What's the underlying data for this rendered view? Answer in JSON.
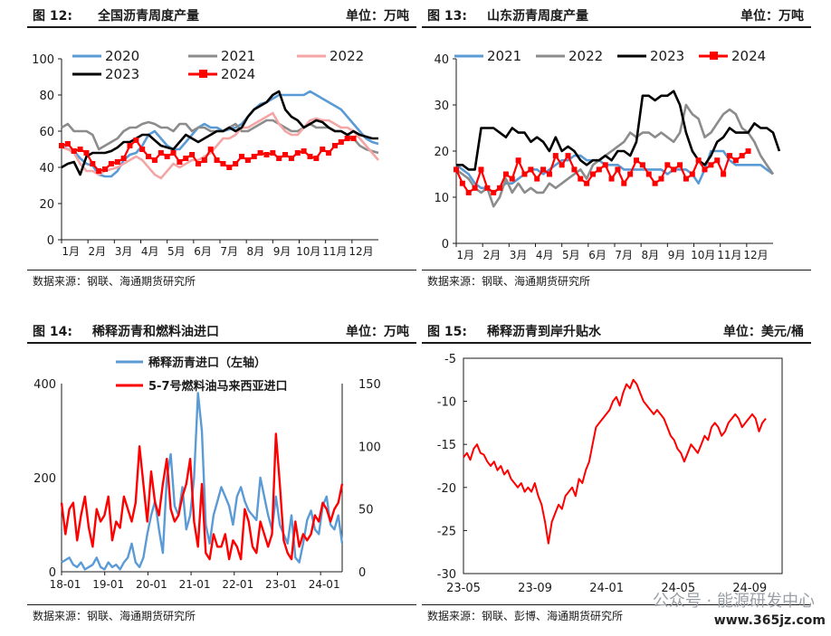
{
  "figures": [
    {
      "fig": "图 12:",
      "title": "全国沥青周度产量",
      "unit": "单位：万吨",
      "source": "数据来源：钢联、海通期货研究所",
      "chart_data": {
        "type": "line",
        "xticks": [
          "1月",
          "2月",
          "3月",
          "4月",
          "5月",
          "6月",
          "7月",
          "8月",
          "9月",
          "10月",
          "11月",
          "12月"
        ],
        "yticks": [
          0,
          20,
          40,
          60,
          80,
          100
        ],
        "ylim": [
          0,
          100
        ],
        "legend_position": "top",
        "grid": false,
        "series": [
          {
            "name": "2020",
            "color": "#5b9bd5",
            "values": [
              52,
              50,
              49,
              45,
              42,
              41,
              36,
              35,
              35,
              38,
              44,
              47,
              48,
              52,
              58,
              60,
              56,
              52,
              50,
              50,
              54,
              58,
              62,
              64,
              62,
              62,
              60,
              61,
              62,
              64,
              68,
              72,
              75,
              76,
              78,
              80,
              80,
              80,
              80,
              80,
              82,
              80,
              78,
              76,
              74,
              72,
              68,
              64,
              60,
              56,
              54,
              53
            ]
          },
          {
            "name": "2021",
            "color": "#8c8c8c",
            "values": [
              62,
              64,
              60,
              60,
              60,
              58,
              50,
              52,
              54,
              56,
              60,
              62,
              62,
              64,
              65,
              64,
              62,
              62,
              60,
              64,
              64,
              60,
              62,
              62,
              60,
              60,
              60,
              62,
              64,
              60,
              60,
              62,
              64,
              66,
              66,
              64,
              62,
              60,
              60,
              62,
              64,
              62,
              62,
              62,
              60,
              60,
              58,
              56,
              52,
              50,
              49,
              48
            ]
          },
          {
            "name": "2022",
            "color": "#f4a6a6",
            "values": [
              51,
              50,
              48,
              42,
              38,
              38,
              36,
              38,
              39,
              40,
              42,
              44,
              46,
              44,
              40,
              36,
              34,
              38,
              42,
              40,
              42,
              44,
              44,
              46,
              48,
              52,
              56,
              56,
              58,
              62,
              62,
              64,
              66,
              68,
              70,
              64,
              60,
              58,
              58,
              62,
              66,
              67,
              66,
              66,
              64,
              62,
              62,
              60,
              56,
              52,
              48,
              44
            ]
          },
          {
            "name": "2023",
            "color": "#000000",
            "values": [
              40,
              42,
              43,
              36,
              46,
              48,
              48,
              48,
              49,
              51,
              54,
              54,
              56,
              58,
              58,
              55,
              52,
              51,
              50,
              54,
              58,
              56,
              54,
              56,
              58,
              60,
              60,
              62,
              60,
              62,
              68,
              72,
              74,
              76,
              80,
              82,
              72,
              68,
              66,
              62,
              64,
              66,
              65,
              62,
              60,
              60,
              58,
              60,
              58,
              57,
              56,
              56
            ]
          },
          {
            "name": "2024",
            "color": "#ff0000",
            "marker": "square",
            "values": [
              52,
              53,
              49,
              50,
              48,
              42,
              38,
              39,
              42,
              43,
              45,
              52,
              55,
              50,
              46,
              44,
              48,
              46,
              48,
              43,
              45,
              47,
              42,
              44,
              50,
              44,
              42,
              40,
              42,
              46,
              44,
              46,
              48,
              47,
              48,
              45,
              47,
              45,
              48,
              49,
              46,
              45,
              50,
              48,
              52,
              54,
              56,
              56,
              null,
              null,
              null,
              null
            ]
          }
        ]
      }
    },
    {
      "fig": "图 13:",
      "title": "山东沥青周度产量",
      "unit": "单位：万吨",
      "source": "数据来源：钢联、海通期货研究所",
      "chart_data": {
        "type": "line",
        "xticks": [
          "1月",
          "2月",
          "3月",
          "4月",
          "5月",
          "6月",
          "7月",
          "8月",
          "9月",
          "10月",
          "11月",
          "12月"
        ],
        "yticks": [
          0,
          10,
          20,
          30,
          40
        ],
        "ylim": [
          0,
          40
        ],
        "legend_position": "top",
        "grid": false,
        "series": [
          {
            "name": "2021",
            "color": "#5b9bd5",
            "values": [
              17,
              16,
              15,
              13,
              12,
              12,
              11,
              12,
              13,
              13,
              14,
              15,
              16,
              16,
              15,
              16,
              17,
              18,
              18,
              19,
              19,
              18,
              18,
              18,
              17,
              17,
              17,
              16,
              16,
              16,
              16,
              16,
              16,
              16,
              15,
              16,
              16,
              16,
              15,
              13,
              16,
              20,
              20,
              20,
              18,
              17,
              17,
              17,
              17,
              17,
              16,
              15
            ]
          },
          {
            "name": "2022",
            "color": "#8c8c8c",
            "values": [
              16,
              15,
              14,
              12,
              11,
              12,
              8,
              10,
              14,
              11,
              13,
              11,
              12,
              11,
              11,
              13,
              12,
              13,
              14,
              15,
              16,
              14,
              17,
              18,
              19,
              20,
              21,
              22,
              24,
              23,
              24,
              24,
              23,
              24,
              23,
              22,
              24,
              30,
              28,
              27,
              23,
              24,
              26,
              28,
              29,
              28,
              25,
              24,
              22,
              19,
              17,
              15
            ]
          },
          {
            "name": "2023",
            "color": "#000000",
            "values": [
              17,
              17,
              16,
              16,
              25,
              25,
              25,
              24,
              23,
              25,
              24,
              24,
              22,
              23,
              22,
              20,
              23,
              20,
              21,
              20,
              18,
              17,
              18,
              18,
              19,
              18,
              20,
              20,
              19,
              22,
              32,
              32,
              31,
              32,
              32,
              33,
              30,
              24,
              20,
              18,
              17,
              19,
              22,
              23,
              25,
              24,
              24,
              24,
              26,
              25,
              25,
              24,
              20
            ]
          },
          {
            "name": "2024",
            "color": "#ff0000",
            "marker": "square",
            "values": [
              16,
              13,
              11,
              12,
              16,
              12,
              11,
              12,
              15,
              14,
              18,
              15,
              16,
              14,
              16,
              15,
              19,
              17,
              19,
              16,
              14,
              13,
              15,
              16,
              17,
              14,
              16,
              13,
              15,
              18,
              17,
              15,
              13,
              14,
              17,
              16,
              17,
              14,
              15,
              18,
              16,
              17,
              18,
              15,
              19,
              18,
              19,
              20,
              null,
              null,
              null,
              null
            ]
          }
        ]
      }
    },
    {
      "fig": "图 14:",
      "title": "稀释沥青和燃料油进口",
      "unit": "单位：万吨",
      "source": "数据来源：钢联、海通期货研究所",
      "chart_data": {
        "type": "line",
        "xticks": [
          "18-01",
          "19-01",
          "20-01",
          "21-01",
          "22-01",
          "23-01",
          "24-01"
        ],
        "yticks_left": [
          0,
          200,
          400
        ],
        "yticks_right": [
          0,
          50,
          100,
          150
        ],
        "ylim_left": [
          0,
          400
        ],
        "ylim_right": [
          0,
          150
        ],
        "legend_position": "top",
        "grid": false,
        "series": [
          {
            "name": "稀释沥青进口（左轴）",
            "color": "#5b9bd5",
            "axis": "left",
            "values": [
              20,
              25,
              30,
              15,
              10,
              20,
              5,
              10,
              15,
              30,
              10,
              5,
              20,
              10,
              15,
              5,
              20,
              30,
              60,
              20,
              10,
              30,
              80,
              120,
              150,
              90,
              40,
              200,
              250,
              140,
              120,
              180,
              90,
              120,
              200,
              380,
              300,
              100,
              60,
              120,
              150,
              180,
              160,
              140,
              100,
              160,
              180,
              150,
              130,
              120,
              110,
              200,
              160,
              120,
              90,
              160,
              100,
              80,
              60,
              120,
              30,
              20,
              60,
              110,
              130,
              90,
              80,
              140,
              160,
              100,
              90,
              120,
              60
            ]
          },
          {
            "name": "5-7号燃料油马来西亚进口",
            "color": "#ff0000",
            "axis": "right",
            "values": [
              55,
              30,
              50,
              55,
              25,
              45,
              60,
              35,
              20,
              50,
              40,
              45,
              60,
              25,
              40,
              35,
              60,
              50,
              40,
              55,
              100,
              70,
              40,
              80,
              55,
              45,
              70,
              90,
              50,
              40,
              45,
              60,
              70,
              90,
              40,
              20,
              70,
              15,
              10,
              30,
              20,
              20,
              30,
              10,
              25,
              20,
              10,
              50,
              40,
              20,
              15,
              40,
              30,
              20,
              30,
              110,
              70,
              25,
              15,
              10,
              40,
              20,
              30,
              25,
              30,
              45,
              40,
              55,
              50,
              40,
              50,
              55,
              70
            ]
          }
        ]
      }
    },
    {
      "fig": "图 15:",
      "title": "稀释沥青到岸升贴水",
      "unit": "单位：美元/桶",
      "source": "数据来源：钢联、彭博、海通期货研究所",
      "chart_data": {
        "type": "line",
        "xticks": [
          "23-05",
          "23-09",
          "24-01",
          "24-05",
          "24-09"
        ],
        "yticks": [
          -30,
          -25,
          -20,
          -15,
          -10,
          -5
        ],
        "ylim": [
          -30,
          -5
        ],
        "grid": false,
        "series": [
          {
            "name": "",
            "color": "#ff0000",
            "values": [
              -16.5,
              -16,
              -16.8,
              -15.5,
              -15,
              -16,
              -16.2,
              -17,
              -17.5,
              -17,
              -18,
              -17.5,
              -18.5,
              -18,
              -19,
              -19.5,
              -20,
              -19.5,
              -20.5,
              -20,
              -20.5,
              -19.5,
              -21,
              -22,
              -24,
              -26.5,
              -24,
              -23,
              -22,
              -22.5,
              -21,
              -20.5,
              -20,
              -21,
              -19,
              -19.5,
              -18,
              -17,
              -15,
              -13,
              -12.5,
              -12,
              -11.5,
              -11,
              -10,
              -9.5,
              -10.5,
              -9,
              -8,
              -8.5,
              -7.5,
              -8,
              -9,
              -10,
              -10.5,
              -11,
              -11.5,
              -11,
              -11.5,
              -12,
              -13,
              -14,
              -14.5,
              -15.5,
              -16,
              -17,
              -16,
              -15,
              -15.5,
              -16,
              -15,
              -14,
              -14.5,
              -13,
              -12.5,
              -13,
              -14,
              -13.5,
              -12.5,
              -12,
              -11.5,
              -12,
              -13,
              -12.5,
              -12,
              -11.5,
              -12,
              -13.5,
              -12.5,
              -12
            ]
          }
        ]
      }
    }
  ],
  "watermark": {
    "text": "公众号 · 能源研发中心",
    "url": "www.365jz.com"
  }
}
